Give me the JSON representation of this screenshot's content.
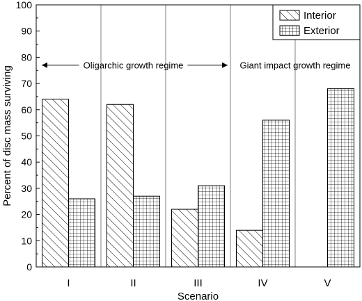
{
  "chart_data": {
    "type": "bar",
    "title": "",
    "xlabel": "Scenario",
    "ylabel": "Percent of disc mass surviving",
    "ylim": [
      0,
      100
    ],
    "yticks": [
      0,
      10,
      20,
      30,
      40,
      50,
      60,
      70,
      80,
      90,
      100
    ],
    "categories": [
      "I",
      "II",
      "III",
      "IV",
      "V"
    ],
    "series": [
      {
        "name": "Interior",
        "pattern": "diagonal-hatch",
        "values": [
          64,
          62,
          22,
          14,
          0
        ]
      },
      {
        "name": "Exterior",
        "pattern": "crosshatch-grid",
        "values": [
          26,
          27,
          31,
          56,
          68
        ]
      }
    ],
    "legend_position": "top-right",
    "grid": false,
    "annotations": [
      {
        "text": "Oligarchic growth regime",
        "type": "double-arrow",
        "span": [
          "I",
          "III"
        ],
        "y": 77
      },
      {
        "text": "Giant impact growth regime",
        "type": "text",
        "span": [
          "IV",
          "V"
        ],
        "y": 77
      }
    ],
    "colors": {
      "axis": "#000000",
      "bar_stroke": "#000000",
      "separator": "#808080"
    }
  }
}
